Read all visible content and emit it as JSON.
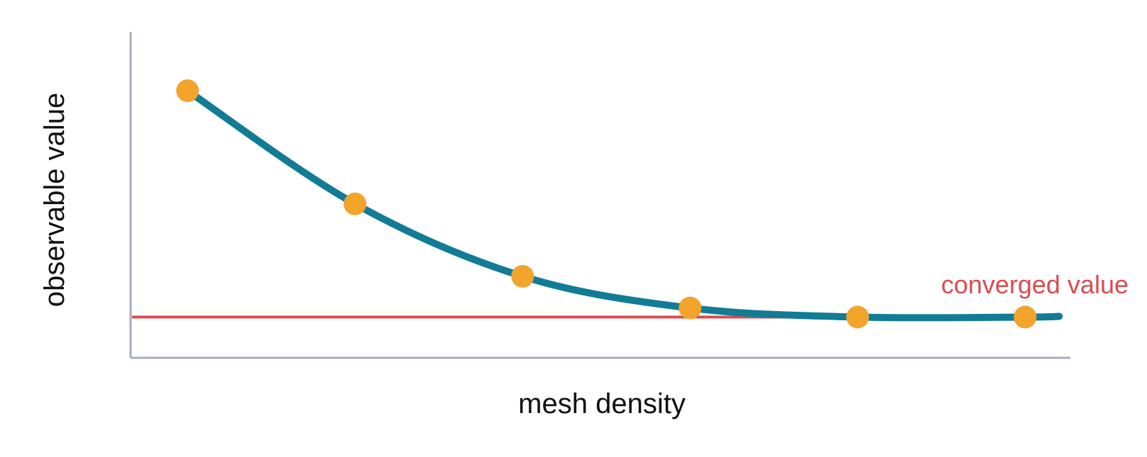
{
  "chart_data": {
    "type": "line",
    "xlabel": "mesh density",
    "ylabel": "observable value",
    "x_ticks_shown": false,
    "y_ticks_shown": false,
    "grid": false,
    "series": [
      {
        "x": [
          1,
          2,
          3,
          4,
          5,
          6
        ],
        "values": [
          1.0,
          0.5,
          0.18,
          0.04,
          0.0,
          0.0
        ]
      }
    ],
    "reference_line": {
      "label": "converged value",
      "value": 0.0
    },
    "ylim": [
      -0.18,
      1.26
    ],
    "xlim": [
      0.66,
      6.27
    ],
    "colors": {
      "line": "#127c96",
      "points": "#f2a42b",
      "reference": "#dc4b4d",
      "axes": "#a3adbe",
      "text": "#111111"
    }
  }
}
